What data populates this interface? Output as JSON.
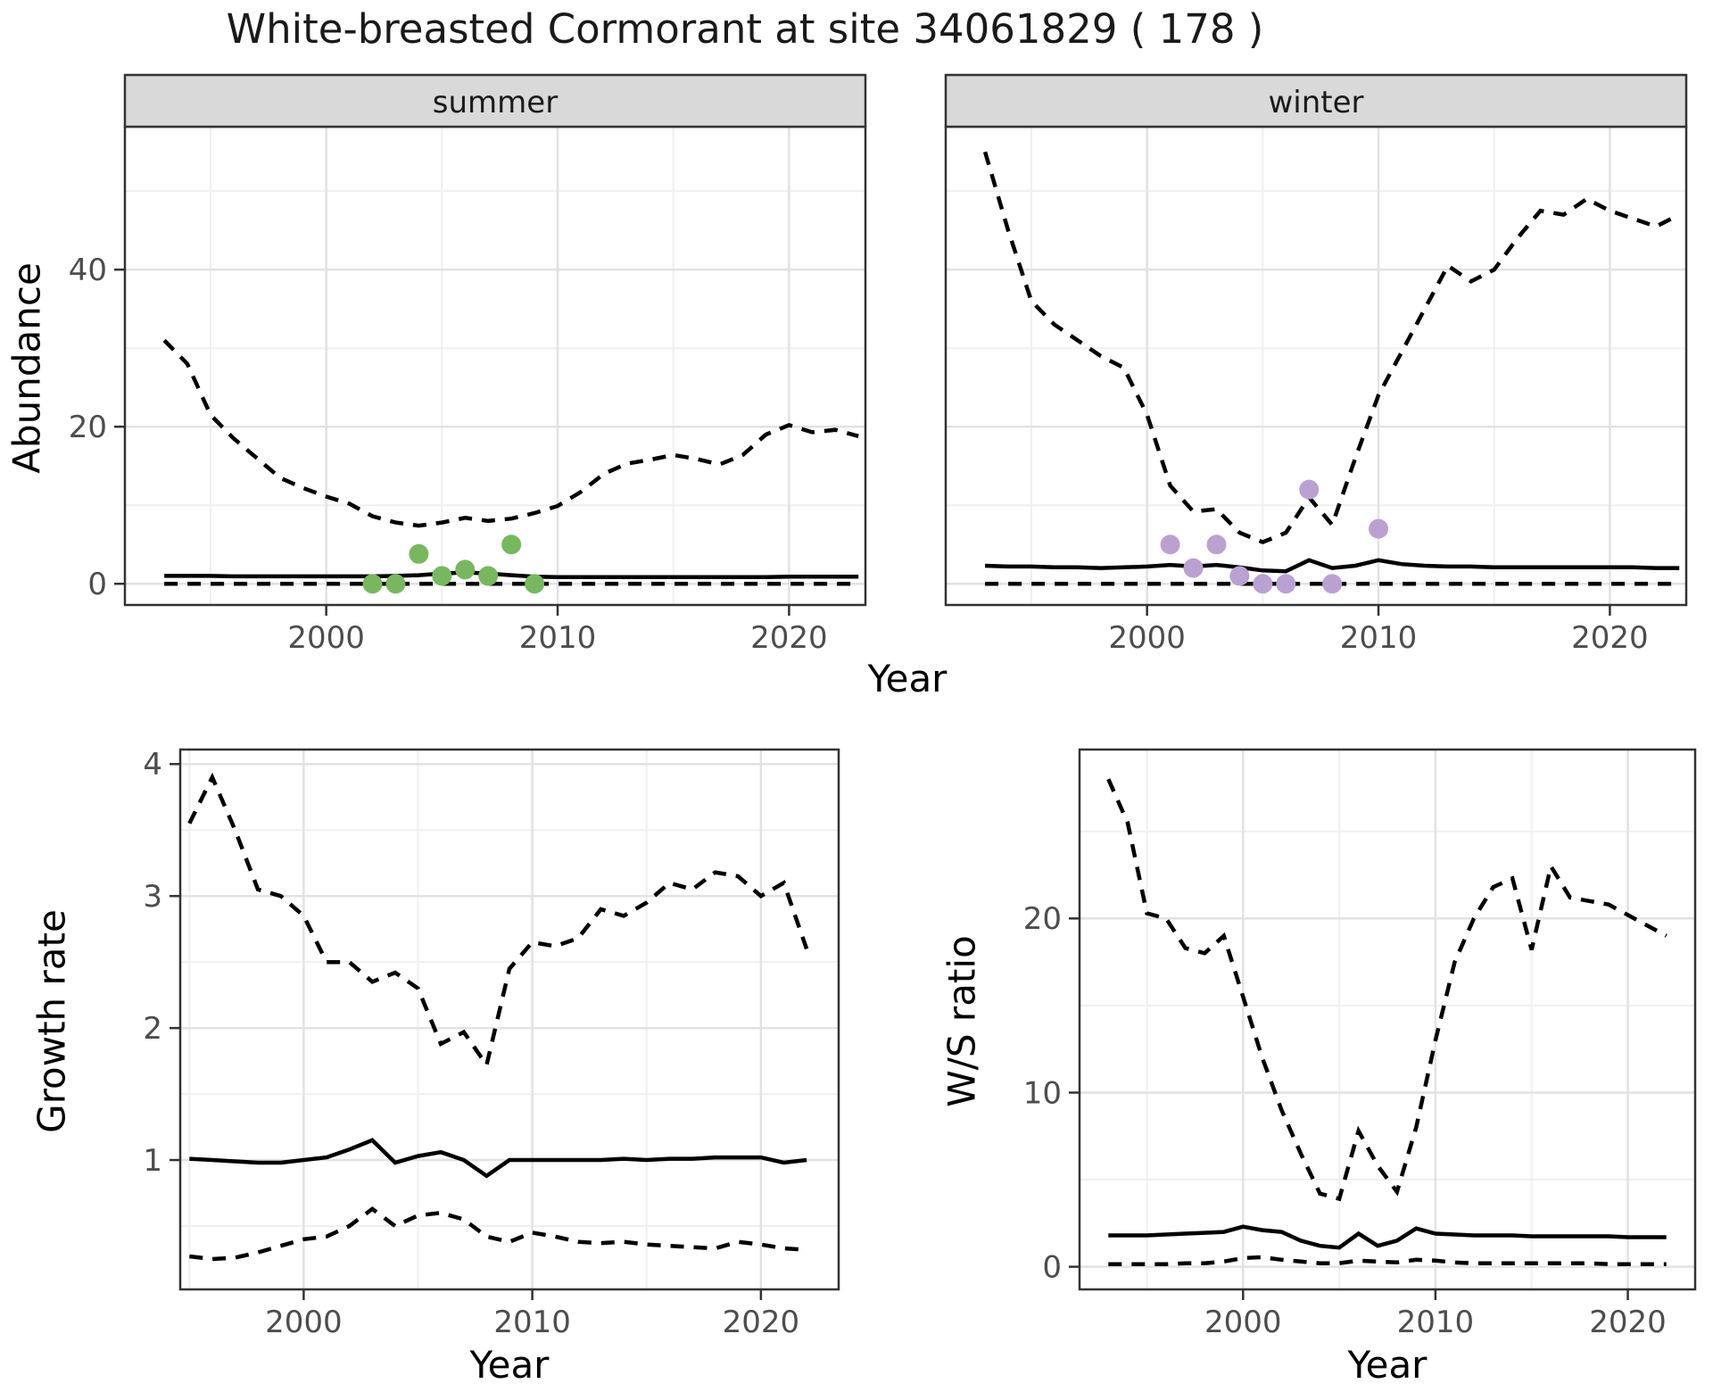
{
  "title": "White-breasted Cormorant at site 34061829 ( 178 )",
  "labels": {
    "abundance": "Abundance",
    "growth_rate": "Growth rate",
    "ws_ratio": "W/S ratio",
    "year": "Year"
  },
  "facets": {
    "summer": "summer",
    "winter": "winter"
  },
  "colors": {
    "line": "#000000",
    "summer_point": "#77b85e",
    "winter_point": "#bba1d1",
    "strip_bg": "#d9d9d9",
    "panel_border": "#333333",
    "grid_major": "#e2e2e2",
    "grid_minor": "#f0f0f0",
    "tick_text": "#4d4d4d"
  },
  "chart_data": [
    {
      "id": "abundance_summer",
      "type": "line",
      "facet_label": "summer",
      "xlabel": "Year",
      "ylabel": "Abundance",
      "xlim": [
        1991.3,
        2023.3
      ],
      "ylim": [
        -2.7,
        58.2
      ],
      "x_ticks": [
        2000,
        2010,
        2020
      ],
      "x_minor": [
        1995,
        2005,
        2015
      ],
      "y_ticks": [
        0,
        20,
        40
      ],
      "y_minor": [
        10,
        30,
        50
      ],
      "grid": true,
      "legend": "none",
      "years": [
        1993,
        1994,
        1995,
        1996,
        1997,
        1998,
        1999,
        2000,
        2001,
        2002,
        2003,
        2004,
        2005,
        2006,
        2007,
        2008,
        2009,
        2010,
        2011,
        2012,
        2013,
        2014,
        2015,
        2016,
        2017,
        2018,
        2019,
        2020,
        2021,
        2022,
        2023
      ],
      "series": [
        {
          "name": "upper_ci",
          "style": "dashed",
          "values": [
            31,
            28,
            21.5,
            18.5,
            16,
            13.5,
            12.2,
            11.1,
            10.2,
            8.6,
            7.8,
            7.4,
            7.8,
            8.4,
            8.0,
            8.3,
            9.0,
            9.9,
            11.7,
            14.0,
            15.3,
            15.8,
            16.4,
            15.9,
            15.2,
            16.4,
            19.0,
            20.2,
            19.3,
            19.6,
            18.8
          ]
        },
        {
          "name": "mean",
          "style": "solid",
          "values": [
            1.0,
            1.0,
            1.0,
            0.95,
            0.95,
            0.95,
            0.95,
            0.95,
            0.95,
            0.95,
            1.0,
            1.1,
            1.3,
            1.45,
            1.3,
            1.1,
            0.9,
            0.85,
            0.85,
            0.85,
            0.85,
            0.85,
            0.85,
            0.85,
            0.85,
            0.85,
            0.85,
            0.9,
            0.9,
            0.9,
            0.9
          ]
        },
        {
          "name": "lower_ci",
          "style": "dashed",
          "values": [
            0,
            0,
            0,
            0,
            0,
            0,
            0,
            0,
            0,
            0,
            0,
            0,
            0,
            0,
            0,
            0,
            0,
            0,
            0,
            0,
            0,
            0,
            0,
            0,
            0,
            0,
            0,
            0,
            0,
            0,
            0
          ]
        }
      ],
      "observations": {
        "color_key": "summer_point",
        "years": [
          2002,
          2003,
          2004,
          2005,
          2006,
          2007,
          2008,
          2009
        ],
        "values": [
          0,
          0,
          3.8,
          1,
          1.8,
          1,
          5,
          0
        ]
      }
    },
    {
      "id": "abundance_winter",
      "type": "line",
      "facet_label": "winter",
      "xlabel": "Year",
      "ylabel": "Abundance",
      "xlim": [
        1991.3,
        2023.3
      ],
      "ylim": [
        -2.7,
        58.2
      ],
      "x_ticks": [
        2000,
        2010,
        2020
      ],
      "x_minor": [
        1995,
        2005,
        2015
      ],
      "y_ticks": [
        0,
        20,
        40
      ],
      "y_minor": [
        10,
        30,
        50
      ],
      "grid": true,
      "legend": "none",
      "years": [
        1993,
        1994,
        1995,
        1996,
        1997,
        1998,
        1999,
        2000,
        2001,
        2002,
        2003,
        2004,
        2005,
        2006,
        2007,
        2008,
        2009,
        2010,
        2011,
        2012,
        2013,
        2014,
        2015,
        2016,
        2017,
        2018,
        2019,
        2020,
        2021,
        2022,
        2023
      ],
      "series": [
        {
          "name": "upper_ci",
          "style": "dashed",
          "values": [
            55,
            45,
            36,
            33,
            31,
            29,
            27.5,
            21.5,
            12.5,
            9.2,
            9.5,
            6.5,
            5.3,
            6.5,
            11,
            7.5,
            16,
            24,
            29.5,
            35,
            40.5,
            38.5,
            40,
            44,
            47.5,
            47,
            49,
            47.5,
            46.5,
            45.5,
            47
          ]
        },
        {
          "name": "mean",
          "style": "solid",
          "values": [
            2.3,
            2.2,
            2.2,
            2.1,
            2.1,
            2.0,
            2.1,
            2.2,
            2.4,
            2.2,
            2.4,
            2.1,
            1.7,
            1.6,
            3.0,
            2.0,
            2.3,
            3.0,
            2.5,
            2.3,
            2.2,
            2.2,
            2.1,
            2.1,
            2.1,
            2.1,
            2.1,
            2.1,
            2.1,
            2.0,
            2.0
          ]
        },
        {
          "name": "lower_ci",
          "style": "dashed",
          "values": [
            0,
            0,
            0,
            0,
            0,
            0,
            0,
            0,
            0,
            0,
            0,
            0,
            0,
            0,
            0,
            0,
            0,
            0,
            0,
            0,
            0,
            0,
            0,
            0,
            0,
            0,
            0,
            0,
            0,
            0,
            0
          ]
        }
      ],
      "observations": {
        "color_key": "winter_point",
        "years": [
          2001,
          2002,
          2003,
          2004,
          2005,
          2006,
          2007,
          2008,
          2010
        ],
        "values": [
          5,
          2,
          5,
          1,
          0,
          0,
          12,
          0,
          7
        ]
      }
    },
    {
      "id": "growth_rate",
      "type": "line",
      "facet_label": "",
      "xlabel": "Year",
      "ylabel": "Growth rate",
      "xlim": [
        1994.6,
        2023.4
      ],
      "ylim": [
        0.02,
        4.11
      ],
      "x_ticks": [
        2000,
        2010,
        2020
      ],
      "x_minor": [
        1995,
        2005,
        2015
      ],
      "y_ticks": [
        1,
        2,
        3,
        4
      ],
      "y_minor": [
        0.5,
        1.5,
        2.5,
        3.5
      ],
      "grid": true,
      "legend": "none",
      "years": [
        1995,
        1996,
        1997,
        1998,
        1999,
        2000,
        2001,
        2002,
        2003,
        2004,
        2005,
        2006,
        2007,
        2008,
        2009,
        2010,
        2011,
        2012,
        2013,
        2014,
        2015,
        2016,
        2017,
        2018,
        2019,
        2020,
        2021,
        2022
      ],
      "series": [
        {
          "name": "upper_ci",
          "style": "dashed",
          "values": [
            3.55,
            3.9,
            3.5,
            3.05,
            3.0,
            2.85,
            2.5,
            2.5,
            2.35,
            2.42,
            2.3,
            1.88,
            1.97,
            1.72,
            2.45,
            2.65,
            2.62,
            2.68,
            2.9,
            2.85,
            2.95,
            3.1,
            3.05,
            3.18,
            3.15,
            3.0,
            3.1,
            2.6
          ]
        },
        {
          "name": "mean",
          "style": "solid",
          "values": [
            1.01,
            1.0,
            0.99,
            0.98,
            0.98,
            1.0,
            1.02,
            1.08,
            1.15,
            0.98,
            1.03,
            1.06,
            1.0,
            0.88,
            1.0,
            1.0,
            1.0,
            1.0,
            1.0,
            1.01,
            1.0,
            1.01,
            1.01,
            1.02,
            1.02,
            1.02,
            0.98,
            1.0
          ]
        },
        {
          "name": "lower_ci",
          "style": "dashed",
          "values": [
            0.27,
            0.25,
            0.26,
            0.3,
            0.35,
            0.4,
            0.42,
            0.5,
            0.63,
            0.5,
            0.58,
            0.6,
            0.55,
            0.42,
            0.38,
            0.45,
            0.42,
            0.38,
            0.37,
            0.38,
            0.36,
            0.35,
            0.34,
            0.33,
            0.38,
            0.36,
            0.33,
            0.32
          ]
        }
      ],
      "observations": {
        "color_key": "",
        "years": [],
        "values": []
      }
    },
    {
      "id": "ws_ratio",
      "type": "line",
      "facet_label": "",
      "xlabel": "Year",
      "ylabel": "W/S ratio",
      "xlim": [
        1991.5,
        2023.5
      ],
      "ylim": [
        -1.3,
        29.7
      ],
      "x_ticks": [
        2000,
        2010,
        2020
      ],
      "x_minor": [
        1995,
        2005,
        2015
      ],
      "y_ticks": [
        0,
        10,
        20
      ],
      "y_minor": [
        5,
        15,
        25
      ],
      "grid": true,
      "legend": "none",
      "years": [
        1993,
        1994,
        1995,
        1996,
        1997,
        1998,
        1999,
        2000,
        2001,
        2002,
        2003,
        2004,
        2005,
        2006,
        2007,
        2008,
        2009,
        2010,
        2011,
        2012,
        2013,
        2014,
        2015,
        2016,
        2017,
        2018,
        2019,
        2020,
        2021,
        2022
      ],
      "series": [
        {
          "name": "upper_ci",
          "style": "dashed",
          "values": [
            28,
            25.5,
            20.3,
            20,
            18.3,
            18,
            19,
            15.5,
            12,
            9,
            6.5,
            4.2,
            3.9,
            7.8,
            5.8,
            4.3,
            8,
            13,
            17.5,
            20,
            21.8,
            22.3,
            18.2,
            23,
            21.2,
            21,
            20.8,
            20.2,
            19.6,
            19
          ]
        },
        {
          "name": "mean",
          "style": "solid",
          "values": [
            1.8,
            1.8,
            1.8,
            1.85,
            1.9,
            1.95,
            2.0,
            2.3,
            2.1,
            2.0,
            1.5,
            1.2,
            1.1,
            1.9,
            1.2,
            1.5,
            2.2,
            1.9,
            1.85,
            1.8,
            1.8,
            1.8,
            1.75,
            1.75,
            1.75,
            1.75,
            1.75,
            1.7,
            1.7,
            1.7
          ]
        },
        {
          "name": "lower_ci",
          "style": "dashed",
          "values": [
            0.15,
            0.15,
            0.15,
            0.15,
            0.2,
            0.2,
            0.3,
            0.5,
            0.55,
            0.4,
            0.3,
            0.2,
            0.2,
            0.35,
            0.3,
            0.25,
            0.4,
            0.35,
            0.25,
            0.2,
            0.2,
            0.2,
            0.2,
            0.2,
            0.2,
            0.2,
            0.15,
            0.15,
            0.15,
            0.15
          ]
        }
      ],
      "observations": {
        "color_key": "",
        "years": [],
        "values": []
      }
    }
  ]
}
